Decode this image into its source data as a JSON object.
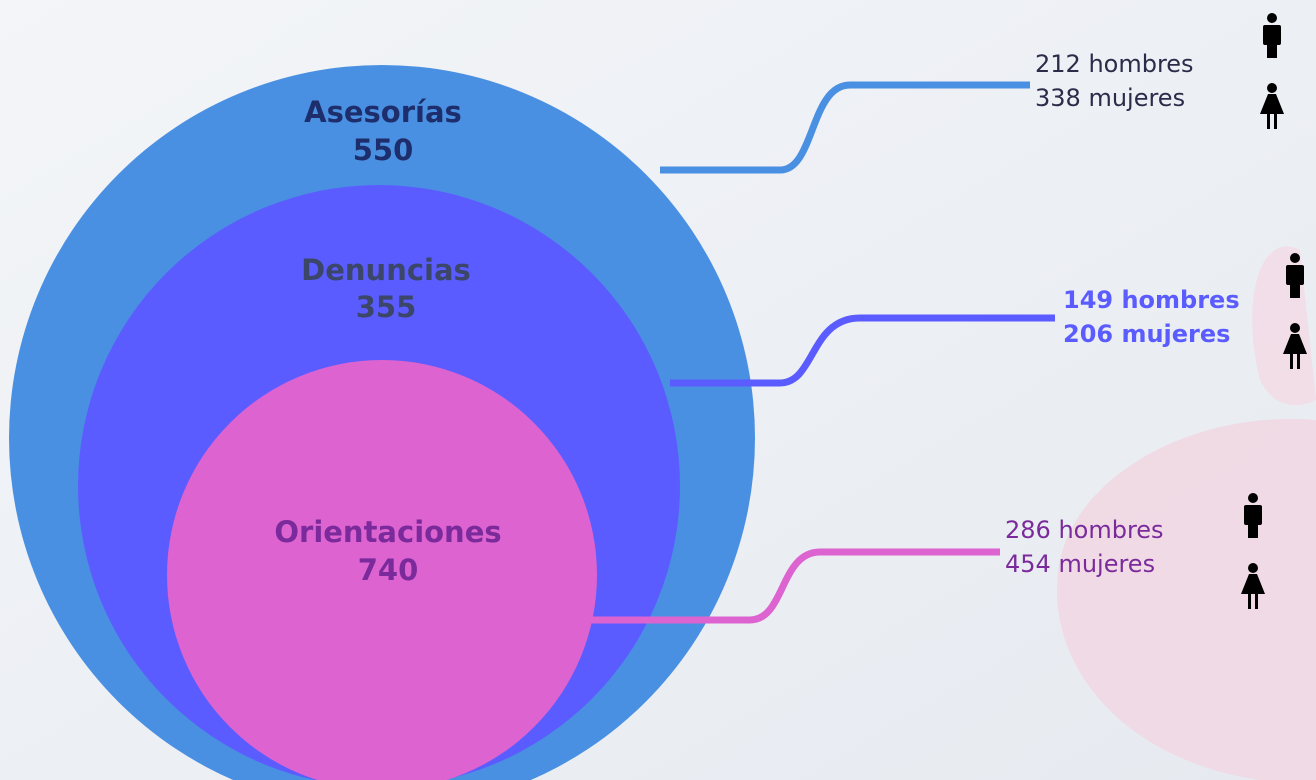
{
  "groups": [
    {
      "name": "Asesorías",
      "total": "550",
      "men": "212 hombres",
      "women": "338 mujeres"
    },
    {
      "name": "Denuncias",
      "total": "355",
      "men": "149 hombres",
      "women": "206 mujeres"
    },
    {
      "name": "Orientaciones",
      "total": "740",
      "men": "286 hombres",
      "women": "454 mujeres"
    }
  ]
}
